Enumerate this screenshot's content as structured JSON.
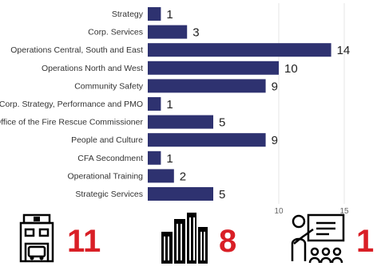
{
  "chart_data": {
    "type": "bar",
    "orientation": "horizontal",
    "categories": [
      "Strategy",
      "Corp. Services",
      "Operations Central, South and East",
      "Operations North and West",
      "Community Safety",
      "Corp. Strategy, Performance and PMO",
      "Office of the Fire Rescue Commissioner",
      "People and Culture",
      "CFA Secondment",
      "Operational Training",
      "Strategic Services"
    ],
    "values": [
      1,
      3,
      14,
      10,
      9,
      1,
      5,
      9,
      1,
      2,
      5
    ],
    "data_labels": [
      "1",
      "3",
      "14",
      "10",
      "9",
      "1",
      "5",
      "9",
      "1",
      "2",
      "5"
    ],
    "x_ticks": [
      "10",
      "15"
    ],
    "xlim": [
      0,
      15
    ],
    "grid": true,
    "bar_color": "#2e3270"
  },
  "stats": [
    {
      "icon": "fire-station-icon",
      "value": "11"
    },
    {
      "icon": "city-buildings-icon",
      "value": "8"
    },
    {
      "icon": "presentation-icon",
      "value": "1"
    }
  ],
  "colors": {
    "bar": "#2e3270",
    "stat_value": "#d91f26",
    "icon": "#000000",
    "grid": "#e6e6e6",
    "text": "#333333"
  }
}
